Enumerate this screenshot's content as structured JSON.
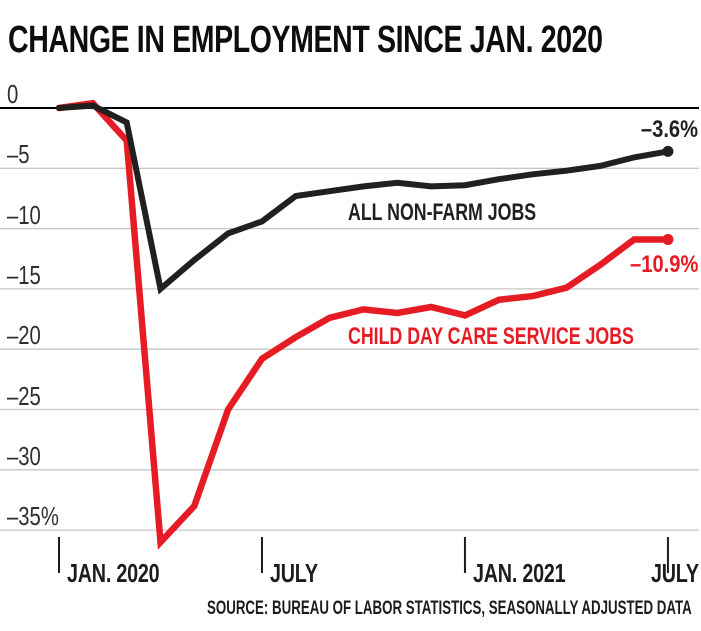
{
  "title": "CHANGE IN EMPLOYMENT SINCE JAN. 2020",
  "source": "SOURCE: BUREAU OF LABOR STATISTICS, SEASONALLY ADJUSTED DATA",
  "colors": {
    "nonfarm_line": "#221f1f",
    "childcare_line": "#e61c24",
    "grid": "#c7c7c7",
    "zero_line": "#000000",
    "tick": "#1c1c1c"
  },
  "chart_data": {
    "type": "line",
    "title": "CHANGE IN EMPLOYMENT SINCE JAN. 2020",
    "x_unit": "month",
    "months": [
      "Jan 2020",
      "Feb 2020",
      "Mar 2020",
      "Apr 2020",
      "May 2020",
      "Jun 2020",
      "Jul 2020",
      "Aug 2020",
      "Sep 2020",
      "Oct 2020",
      "Nov 2020",
      "Dec 2020",
      "Jan 2021",
      "Feb 2021",
      "Mar 2021",
      "Apr 2021",
      "May 2021",
      "Jun 2021",
      "Jul 2021"
    ],
    "ylim": [
      -37.5,
      1
    ],
    "grid": "horizontal",
    "legend_position": "inline-labels",
    "series": [
      {
        "name": "all-non-farm-jobs",
        "label": "ALL NON-FARM JOBS",
        "color": "#221f1f",
        "end_label": "–3.6%",
        "end_value": -3.6,
        "values": [
          0,
          0.2,
          -1.2,
          -15.0,
          -12.6,
          -10.4,
          -9.4,
          -7.3,
          -6.9,
          -6.5,
          -6.2,
          -6.5,
          -6.4,
          -5.9,
          -5.5,
          -5.2,
          -4.8,
          -4.1,
          -3.6
        ]
      },
      {
        "name": "child-day-care-service-jobs",
        "label": "CHILD DAY CARE SERVICE JOBS",
        "color": "#e61c24",
        "end_label": "–10.9%",
        "end_value": -10.9,
        "values": [
          0,
          0.4,
          -2.7,
          -36.0,
          -33.0,
          -25.0,
          -20.8,
          -19.0,
          -17.4,
          -16.7,
          -17.0,
          -16.5,
          -17.2,
          -15.9,
          -15.6,
          -14.9,
          -13.0,
          -10.9,
          -10.9
        ]
      }
    ],
    "yticks": [
      {
        "label": "0",
        "value": 0
      },
      {
        "label": "–5",
        "value": -5
      },
      {
        "label": "–10",
        "value": -10
      },
      {
        "label": "–15",
        "value": -15
      },
      {
        "label": "–20",
        "value": -20
      },
      {
        "label": "–25",
        "value": -25
      },
      {
        "label": "–30",
        "value": -30
      },
      {
        "label": "–35%",
        "value": -35
      }
    ],
    "xticks": [
      {
        "label": "JAN. 2020",
        "month_index": 0
      },
      {
        "label": "JULY",
        "month_index": 6
      },
      {
        "label": "JAN. 2021",
        "month_index": 12
      },
      {
        "label": "JULY",
        "month_index": 18
      }
    ]
  }
}
